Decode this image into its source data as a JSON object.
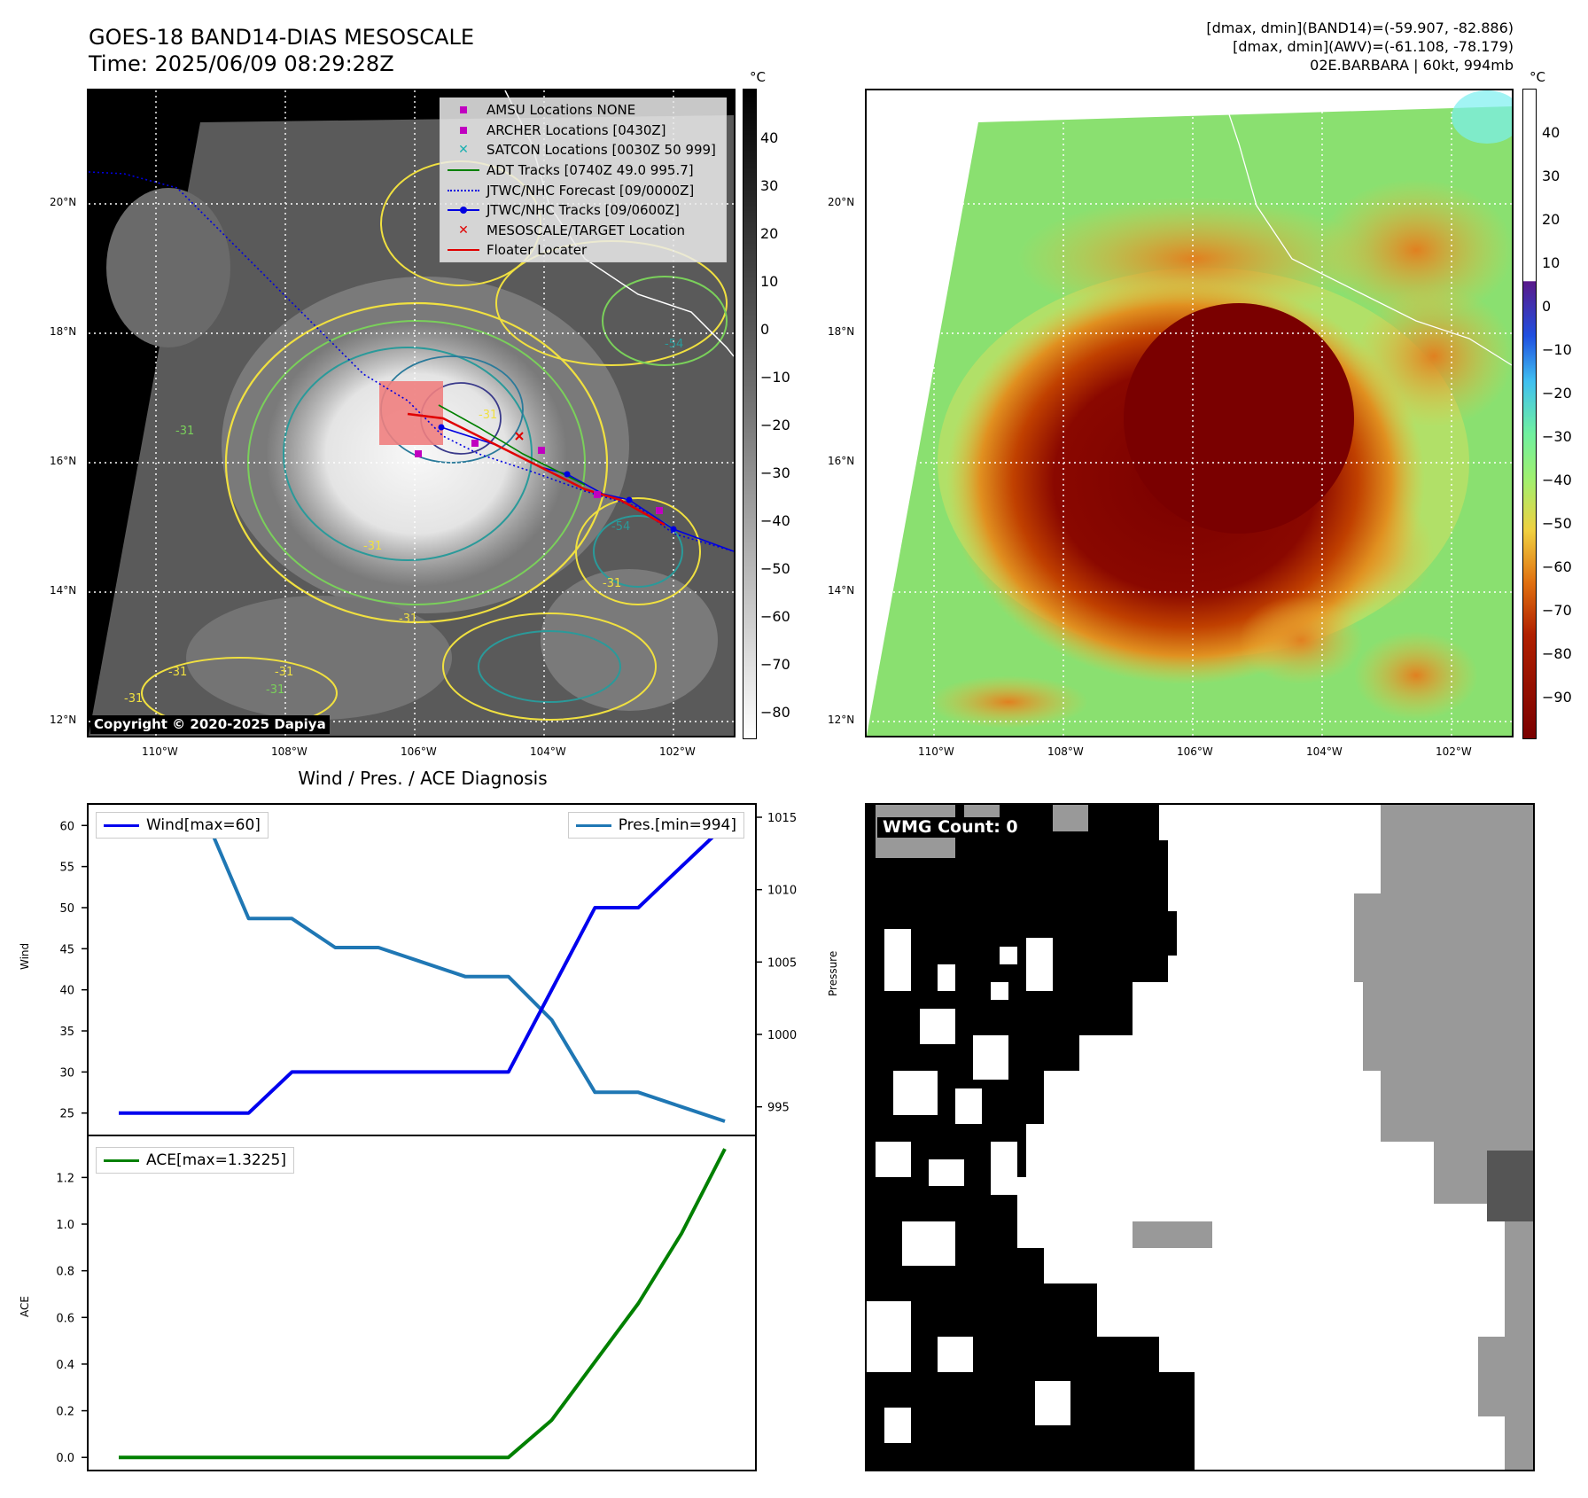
{
  "header": {
    "title_line1": "GOES-18 BAND14-DIAS MESOSCALE",
    "title_line2": "Time: 2025/06/09 08:29:28Z",
    "info_line1": "[dmax, dmin](BAND14)=(-59.907, -82.886)",
    "info_line2": "[dmax, dmin](AWV)=(-61.108, -78.179)",
    "info_line3": "02E.BARBARA | 60kt, 994mb"
  },
  "ir_panel": {
    "unit": "°C",
    "lat_labels": [
      "20°N",
      "18°N",
      "16°N",
      "14°N",
      "12°N"
    ],
    "lon_labels": [
      "110°W",
      "108°W",
      "106°W",
      "104°W",
      "102°W"
    ],
    "colorbar_ticks": [
      "40",
      "30",
      "20",
      "10",
      "0",
      "−10",
      "−20",
      "−30",
      "−40",
      "−50",
      "−60",
      "−70",
      "−80"
    ],
    "copyright": "Copyright © 2020-2025 Dapiya",
    "contour_labels": [
      "-31",
      "-54",
      "-31",
      "-31",
      "-54",
      "-31",
      "-31",
      "-31",
      "-31",
      "-31",
      "-31"
    ],
    "legend": [
      {
        "label": "AMSU Locations NONE",
        "symbol": "square",
        "color": "#c000c0"
      },
      {
        "label": "ARCHER Locations [0430Z]",
        "symbol": "square",
        "color": "#c000c0"
      },
      {
        "label": "SATCON Locations [0030Z 50 999]",
        "symbol": "x",
        "color": "#1ab0b0"
      },
      {
        "label": "ADT Tracks [0740Z 49.0 995.7]",
        "symbol": "line",
        "color": "#008000"
      },
      {
        "label": "JTWC/NHC Forecast [09/0000Z]",
        "symbol": "dotted",
        "color": "#0000e0"
      },
      {
        "label": "JTWC/NHC Tracks [09/0600Z]",
        "symbol": "line-dot",
        "color": "#0000e0"
      },
      {
        "label": "MESOSCALE/TARGET Location",
        "symbol": "x",
        "color": "#e00000"
      },
      {
        "label": "Floater Locater",
        "symbol": "line",
        "color": "#e00000"
      }
    ]
  },
  "awv_panel": {
    "unit": "°C",
    "lat_labels": [
      "20°N",
      "18°N",
      "16°N",
      "14°N",
      "12°N"
    ],
    "lon_labels": [
      "110°W",
      "108°W",
      "106°W",
      "104°W",
      "102°W"
    ],
    "colorbar_ticks": [
      "40",
      "30",
      "20",
      "10",
      "0",
      "−10",
      "−20",
      "−30",
      "−40",
      "−50",
      "−60",
      "−70",
      "−80",
      "−90"
    ]
  },
  "wmg_panel": {
    "label": "WMG Count: 0"
  },
  "chart_data": [
    {
      "type": "line",
      "title": "Wind / Pres. / ACE Diagnosis",
      "x": [
        0,
        1,
        2,
        3,
        4,
        5,
        6,
        7,
        8,
        9,
        10,
        11,
        12,
        13,
        14
      ],
      "series": [
        {
          "name": "Wind[max=60]",
          "axis": "left",
          "color": "#0000ee",
          "values": [
            25,
            25,
            25,
            25,
            30,
            30,
            30,
            30,
            30,
            30,
            40,
            50,
            50,
            55,
            60
          ]
        },
        {
          "name": "Pres.[min=994]",
          "axis": "right",
          "color": "#1f77b4",
          "values": [
            1015,
            1015,
            1015,
            1008,
            1008,
            1006,
            1006,
            1005,
            1004,
            1004,
            1001,
            996,
            996,
            995,
            994
          ]
        }
      ],
      "ylabel": "Wind",
      "ylabel_right": "Pressure",
      "ylim": [
        24,
        61
      ],
      "ylim_right": [
        994,
        1015
      ],
      "yticks": [
        "60",
        "55",
        "50",
        "45",
        "40",
        "35",
        "30",
        "25"
      ],
      "yticks_right": [
        "1015",
        "1010",
        "1005",
        "1000",
        "995"
      ]
    },
    {
      "type": "line",
      "x": [
        0,
        1,
        2,
        3,
        4,
        5,
        6,
        7,
        8,
        9,
        10,
        11,
        12,
        13,
        14
      ],
      "series": [
        {
          "name": "ACE[max=1.3225]",
          "color": "#008000",
          "values": [
            0,
            0,
            0,
            0,
            0,
            0,
            0,
            0,
            0,
            0,
            0.16,
            0.41,
            0.66,
            0.96,
            1.3225
          ]
        }
      ],
      "ylabel": "ACE",
      "ylim": [
        -0.06,
        1.38
      ],
      "yticks": [
        "1.2",
        "1.0",
        "0.8",
        "0.6",
        "0.4",
        "0.2",
        "0.0"
      ]
    }
  ]
}
